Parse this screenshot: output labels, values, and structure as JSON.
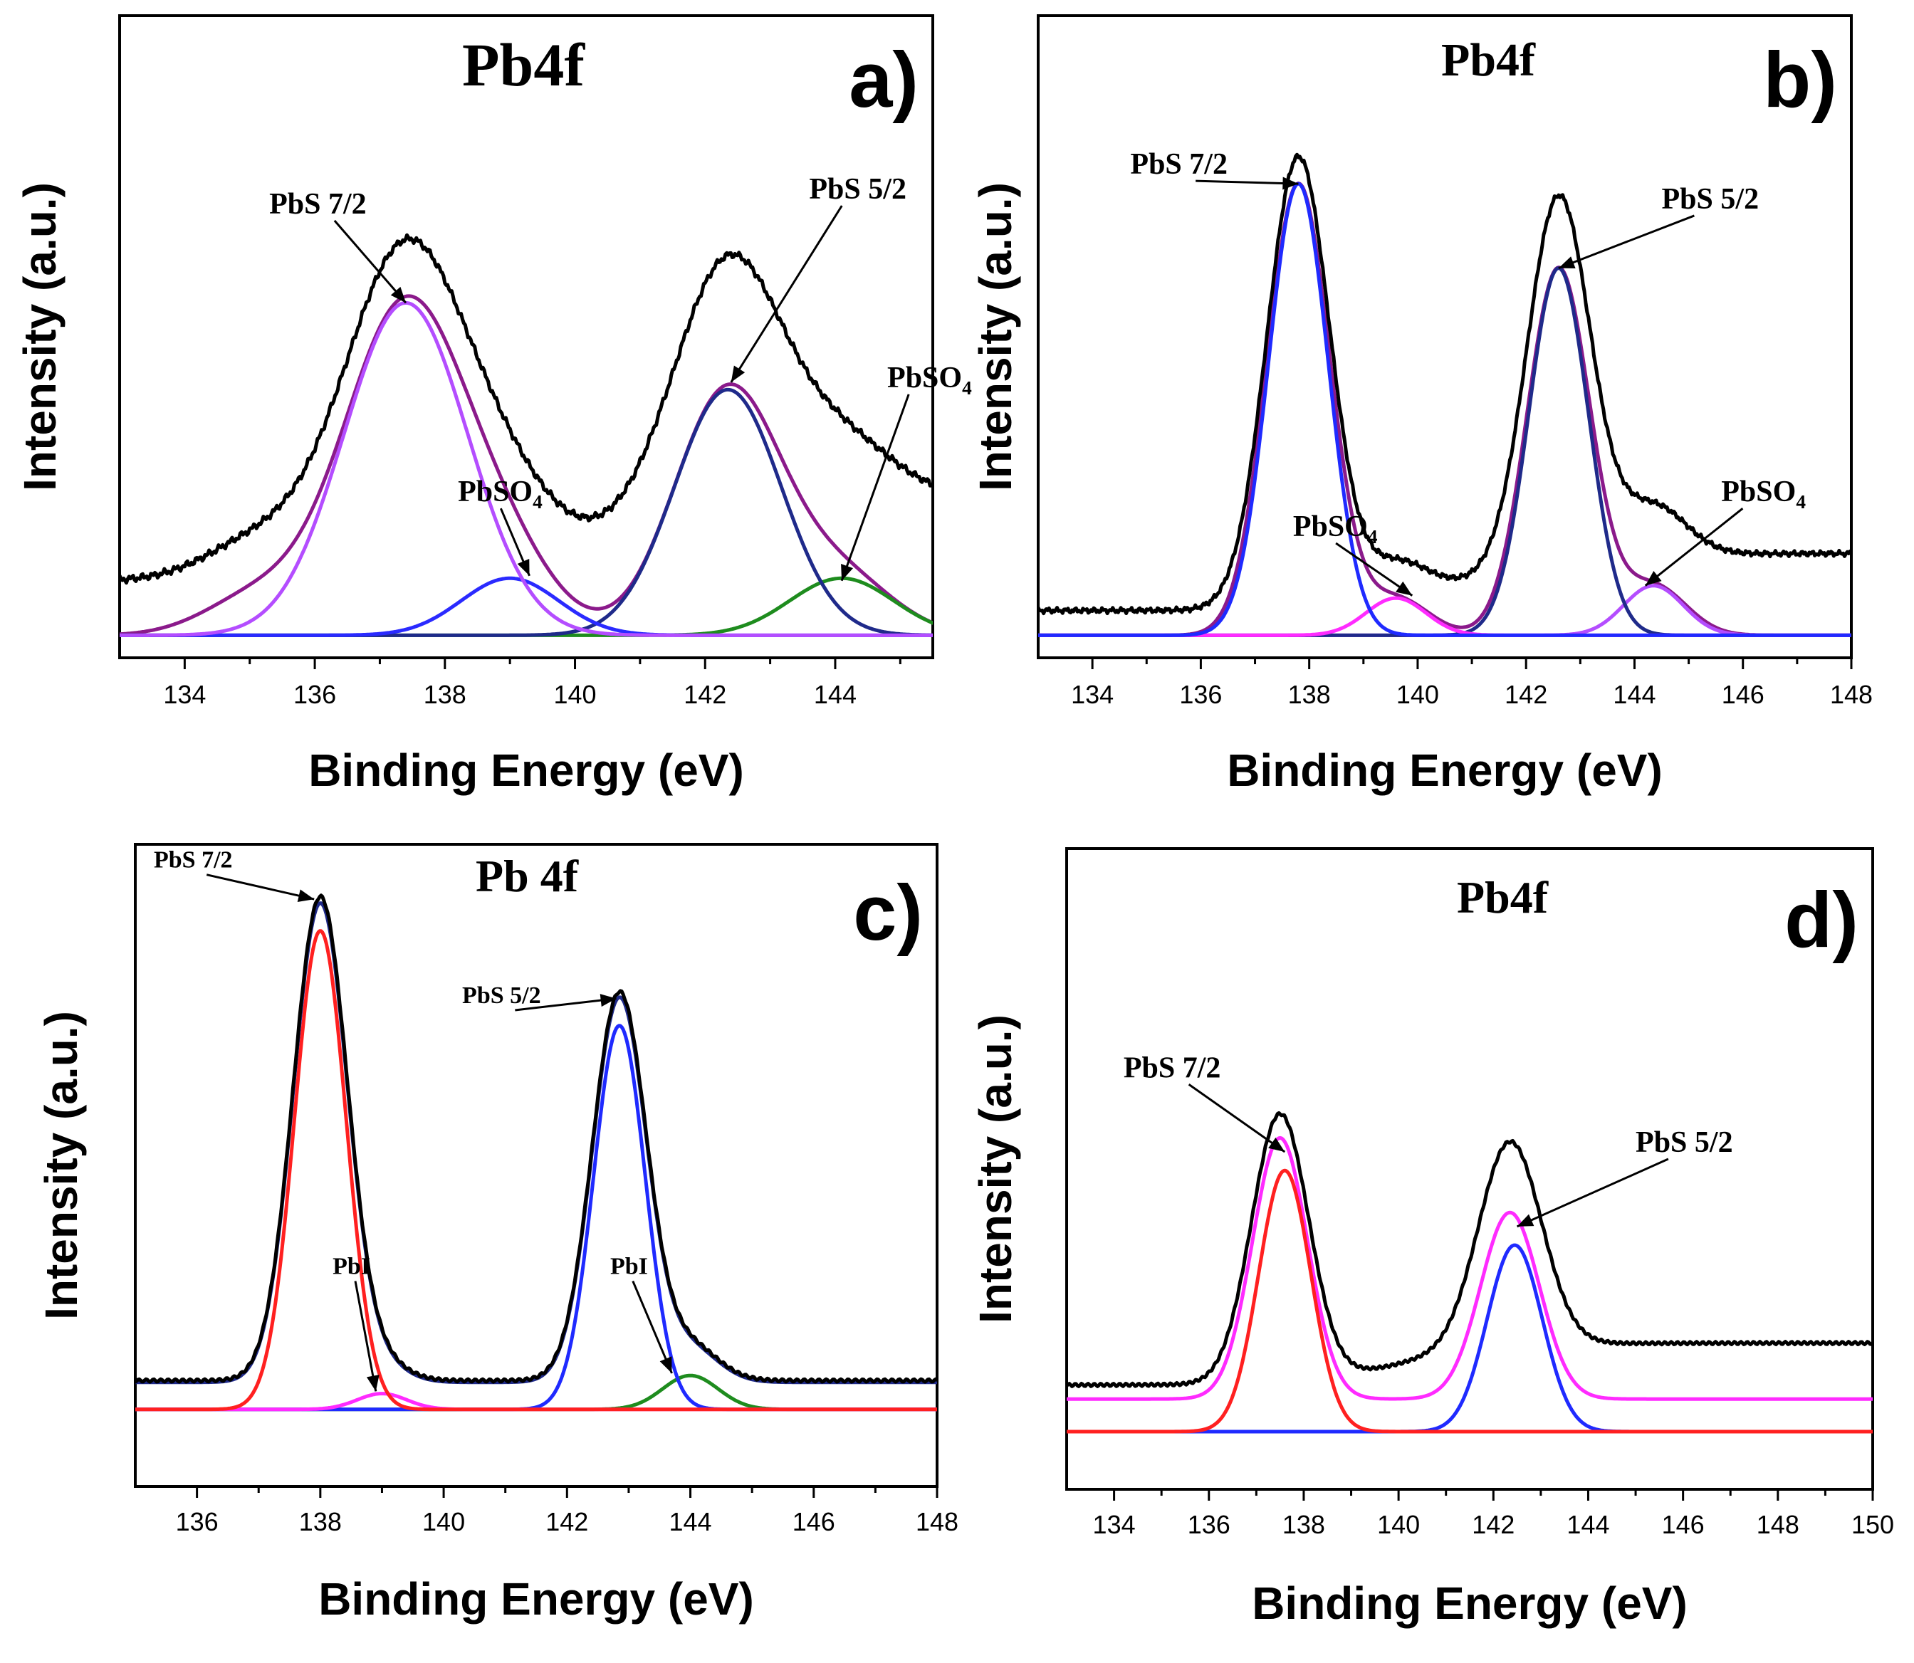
{
  "figure": {
    "caption_letters": [
      "a)",
      "b)",
      "c)",
      "d)"
    ]
  },
  "chart_data": [
    {
      "type": "line",
      "panel": "a)",
      "title": "Pb4f",
      "xlabel": "Binding Energy (eV)",
      "ylabel": "Intensity (a.u.)",
      "xlim": [
        133,
        145.5
      ],
      "ylim": [
        0,
        1
      ],
      "xticks": [
        134,
        136,
        138,
        140,
        142,
        144
      ],
      "background": {
        "kind": "sigmoid",
        "b0": 0.11,
        "b1": 0.28,
        "center": 140.5,
        "width": 0.9
      },
      "series": [
        {
          "name": "raw",
          "color": "#000000",
          "width": 5,
          "kind": "envelope_plus_background",
          "scale": 1.0,
          "wiggle": 0.004
        },
        {
          "name": "PbS 7/2",
          "color": "#b44dff",
          "width": 5,
          "peaks": [
            [
              137.4,
              0.67,
              0.95
            ]
          ]
        },
        {
          "name": "PbSO4 (7/2)",
          "color": "#2a2aff",
          "width": 5,
          "peaks": [
            [
              139.0,
              0.115,
              0.75
            ]
          ]
        },
        {
          "name": "PbS 5/2",
          "color": "#1f2a8a",
          "width": 5,
          "peaks": [
            [
              142.35,
              0.495,
              0.82
            ]
          ]
        },
        {
          "name": "PbSO4 (5/2)",
          "color": "#1e8c1e",
          "width": 5,
          "peaks": [
            [
              144.1,
              0.115,
              0.8
            ]
          ]
        },
        {
          "name": "envelope",
          "color": "#8b1a8b",
          "width": 5,
          "peaks": [
            [
              135.1,
              0.075,
              0.8
            ],
            [
              137.4,
              0.67,
              0.95
            ],
            [
              139.0,
              0.115,
              0.75
            ],
            [
              142.35,
              0.495,
              0.82
            ],
            [
              144.1,
              0.115,
              0.8
            ]
          ]
        }
      ],
      "annotations": [
        {
          "text": "PbS 7/2",
          "text_x": 135.3,
          "text_y": 0.85,
          "arrow_x": 137.4,
          "arrow_y": 0.67
        },
        {
          "text": "PbS 5/2",
          "text_x": 143.6,
          "text_y": 0.88,
          "arrow_x": 142.4,
          "arrow_y": 0.51
        },
        {
          "text": "PbSO",
          "sub": "4",
          "text_x": 138.2,
          "text_y": 0.27,
          "arrow_x": 139.3,
          "arrow_y": 0.12
        },
        {
          "text": "PbSO",
          "sub": "4",
          "text_x": 144.8,
          "text_y": 0.5,
          "arrow_x": 144.1,
          "arrow_y": 0.11
        }
      ]
    },
    {
      "type": "line",
      "panel": "b)",
      "title": "Pb4f",
      "xlabel": "Binding Energy (eV)",
      "ylabel": "Intensity (a.u.)",
      "xlim": [
        133,
        148
      ],
      "ylim": [
        0,
        1
      ],
      "xticks": [
        134,
        136,
        138,
        140,
        142,
        144,
        146,
        148
      ],
      "background": {
        "kind": "sigmoid",
        "b0": 0.05,
        "b1": 0.165,
        "center": 141.0,
        "width": 1.0
      },
      "series": [
        {
          "name": "raw",
          "color": "#000000",
          "width": 5,
          "kind": "envelope_plus_background",
          "scale": 1.0,
          "wiggle": 0.003
        },
        {
          "name": "PbS 7/2",
          "color": "#1f2aff",
          "width": 5,
          "peaks": [
            [
              137.8,
              0.91,
              0.55
            ]
          ]
        },
        {
          "name": "PbSO4 (7/2)",
          "color": "#ff2bff",
          "width": 5,
          "peaks": [
            [
              139.6,
              0.075,
              0.55
            ]
          ]
        },
        {
          "name": "PbS 5/2",
          "color": "#1f2a8a",
          "width": 5,
          "peaks": [
            [
              142.6,
              0.74,
              0.55
            ]
          ]
        },
        {
          "name": "PbSO4 (5/2)",
          "color": "#b44dff",
          "width": 5,
          "peaks": [
            [
              144.35,
              0.1,
              0.55
            ]
          ]
        },
        {
          "name": "envelope",
          "color": "#8b1a8b",
          "width": 5,
          "peaks": [
            [
              137.8,
              0.91,
              0.58
            ],
            [
              139.6,
              0.075,
              0.6
            ],
            [
              142.6,
              0.74,
              0.58
            ],
            [
              144.35,
              0.1,
              0.6
            ]
          ]
        }
      ],
      "annotations": [
        {
          "text": "PbS 7/2",
          "text_x": 134.7,
          "text_y": 0.93,
          "arrow_x": 137.8,
          "arrow_y": 0.91
        },
        {
          "text": "PbS 5/2",
          "text_x": 144.5,
          "text_y": 0.86,
          "arrow_x": 142.6,
          "arrow_y": 0.74
        },
        {
          "text": "PbSO",
          "sub": "4",
          "text_x": 137.7,
          "text_y": 0.2,
          "arrow_x": 139.9,
          "arrow_y": 0.08
        },
        {
          "text": "PbSO",
          "sub": "4",
          "text_x": 145.6,
          "text_y": 0.27,
          "arrow_x": 144.2,
          "arrow_y": 0.1
        }
      ]
    },
    {
      "type": "line",
      "panel": "c)",
      "title": "Pb 4f",
      "xlabel": "Binding Energy (eV)",
      "ylabel": "Intensity (a.u.)",
      "xlim": [
        135,
        148
      ],
      "ylim": [
        0,
        1
      ],
      "xticks": [
        136,
        138,
        140,
        142,
        144,
        146,
        148
      ],
      "background": {
        "kind": "sigmoid",
        "b0": 0.0,
        "b1": 0.0,
        "center": 141.0,
        "width": 1.0
      },
      "series": [
        {
          "name": "raw",
          "color": "#000000",
          "width": 5,
          "kind": "raw_offset",
          "offset": 0.06,
          "scale": 1.0,
          "wiggle": 0.003
        },
        {
          "name": "PbS 7/2",
          "color": "#ff2020",
          "width": 5,
          "peaks": [
            [
              138.0,
              1.06,
              0.42
            ]
          ]
        },
        {
          "name": "PbI (7/2)",
          "color": "#ff2bff",
          "width": 5,
          "peaks": [
            [
              139.0,
              0.035,
              0.4
            ]
          ]
        },
        {
          "name": "PbS 5/2",
          "color": "#1f2aff",
          "width": 5,
          "peaks": [
            [
              142.85,
              0.85,
              0.42
            ]
          ]
        },
        {
          "name": "PbI (5/2)",
          "color": "#1e8c1e",
          "width": 5,
          "peaks": [
            [
              144.0,
              0.075,
              0.45
            ]
          ]
        },
        {
          "name": "envelope",
          "color": "#1f2a8a",
          "width": 5,
          "kind": "envelope_offset",
          "offset": 0.06,
          "peaks": [
            [
              138.0,
              1.06,
              0.44
            ],
            [
              139.0,
              0.035,
              0.4
            ],
            [
              142.85,
              0.85,
              0.44
            ],
            [
              144.0,
              0.075,
              0.45
            ]
          ]
        }
      ],
      "annotations": [
        {
          "text": "PbS 7/2",
          "text_x": 135.3,
          "text_y": 1.2,
          "arrow_x": 137.9,
          "arrow_y": 1.13
        },
        {
          "text": "PbS 5/2",
          "text_x": 140.3,
          "text_y": 0.9,
          "arrow_x": 142.8,
          "arrow_y": 0.91
        },
        {
          "text": "PbI",
          "text_x": 138.2,
          "text_y": 0.3,
          "arrow_x": 138.9,
          "arrow_y": 0.04
        },
        {
          "text": "PbI",
          "text_x": 142.7,
          "text_y": 0.3,
          "arrow_x": 143.7,
          "arrow_y": 0.08
        }
      ]
    },
    {
      "type": "line",
      "panel": "d)",
      "title": "Pb4f",
      "xlabel": "Binding Energy (eV)",
      "ylabel": "Intensity (a.u.)",
      "xlim": [
        133,
        150
      ],
      "ylim": [
        0,
        1
      ],
      "xticks": [
        134,
        136,
        138,
        140,
        142,
        144,
        146,
        148,
        150
      ],
      "background": {
        "kind": "sigmoid",
        "b0": 0.0,
        "b1": 0.0,
        "center": 141.0,
        "width": 1.0
      },
      "series": [
        {
          "name": "raw",
          "color": "#000000",
          "width": 5,
          "kind": "stack",
          "base": 0.1,
          "step": 0.09,
          "center": 140.0,
          "swidth": 1.0,
          "peaks": [
            [
              137.5,
              0.575,
              0.6
            ],
            [
              142.35,
              0.44,
              0.66
            ]
          ]
        },
        {
          "name": "PbS 7/2 (red)",
          "color": "#ff2020",
          "width": 5,
          "peaks": [
            [
              137.6,
              0.56,
              0.55
            ]
          ]
        },
        {
          "name": "fit (magenta)",
          "color": "#ff2bff",
          "width": 5,
          "kind": "offset",
          "offset": 0.07,
          "peaks": [
            [
              137.5,
              0.56,
              0.58
            ],
            [
              142.35,
              0.4,
              0.62
            ]
          ]
        },
        {
          "name": "PbS 5/2 (blue)",
          "color": "#1f2aff",
          "width": 5,
          "peaks": [
            [
              142.45,
              0.4,
              0.58
            ]
          ]
        }
      ],
      "annotations": [
        {
          "text": "PbS 7/2",
          "text_x": 134.2,
          "text_y": 0.76,
          "arrow_x": 137.6,
          "arrow_y": 0.6
        },
        {
          "text": "PbS 5/2",
          "text_x": 145.0,
          "text_y": 0.6,
          "arrow_x": 142.5,
          "arrow_y": 0.44
        }
      ]
    }
  ]
}
